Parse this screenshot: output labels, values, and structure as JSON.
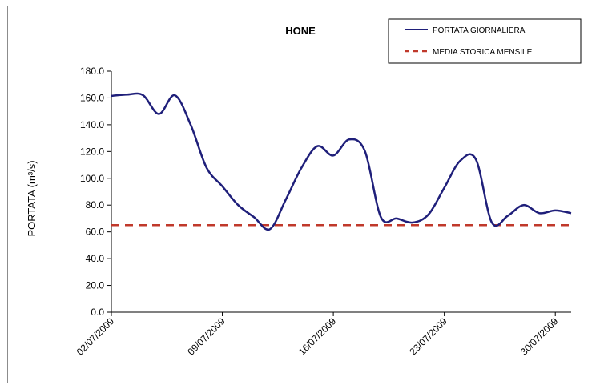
{
  "chart_data": {
    "type": "line",
    "title": "HONE",
    "ylabel": "PORTATA (m³/s)",
    "xlabel": "",
    "ylim": [
      0,
      180
    ],
    "y_ticks": [
      "0.0",
      "20.0",
      "40.0",
      "60.0",
      "80.0",
      "100.0",
      "120.0",
      "140.0",
      "160.0",
      "180.0"
    ],
    "x_range": [
      "2009-07-02",
      "2009-07-31"
    ],
    "x_ticks": [
      "02/07/2009",
      "09/07/2009",
      "16/07/2009",
      "23/07/2009",
      "30/07/2009"
    ],
    "grid": false,
    "legend_position": "top-right",
    "series": [
      {
        "name": "PORTATA GIORNALIERA",
        "color": "#1f1f7a",
        "style": "solid",
        "x": [
          "2009-07-02",
          "2009-07-03",
          "2009-07-04",
          "2009-07-05",
          "2009-07-06",
          "2009-07-07",
          "2009-07-08",
          "2009-07-09",
          "2009-07-10",
          "2009-07-11",
          "2009-07-12",
          "2009-07-13",
          "2009-07-14",
          "2009-07-15",
          "2009-07-16",
          "2009-07-17",
          "2009-07-18",
          "2009-07-19",
          "2009-07-20",
          "2009-07-21",
          "2009-07-22",
          "2009-07-23",
          "2009-07-24",
          "2009-07-25",
          "2009-07-26",
          "2009-07-27",
          "2009-07-28",
          "2009-07-29",
          "2009-07-30",
          "2009-07-31"
        ],
        "values": [
          161.5,
          162.5,
          162,
          148,
          162,
          140,
          108,
          94,
          80,
          71,
          62,
          84,
          108,
          124,
          117,
          129,
          120,
          71,
          70,
          67,
          73,
          93,
          113,
          114,
          67,
          72,
          80,
          74,
          76,
          74
        ]
      },
      {
        "name": "MEDIA STORICA MENSILE",
        "color": "#c0392b",
        "style": "dashed",
        "values": [
          65,
          65
        ]
      }
    ]
  }
}
